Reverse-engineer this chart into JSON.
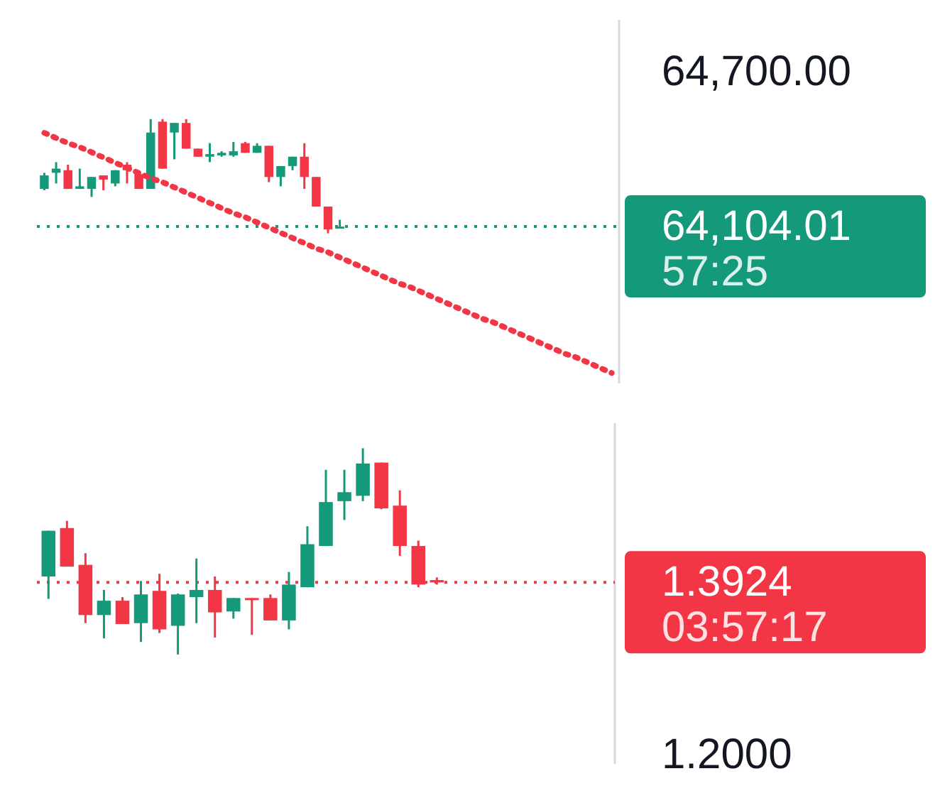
{
  "chart_data": [
    {
      "type": "candlestick",
      "categories": [
        null,
        null,
        null,
        null,
        null,
        null,
        null,
        null,
        null,
        null,
        null,
        null,
        null,
        null,
        null,
        null,
        null,
        null,
        null,
        null,
        null,
        null,
        null,
        null,
        null,
        null,
        null,
        null,
        null,
        null,
        null,
        null,
        null,
        null,
        null,
        null,
        null,
        null,
        null,
        null,
        null,
        null,
        null,
        null,
        null,
        null,
        null,
        null,
        null
      ],
      "ylim": [
        63500,
        64900
      ],
      "yticks": [
        {
          "value": 64700,
          "label": "64,700.00"
        },
        {
          "value": 64104.01,
          "label": "64,104.01"
        }
      ],
      "tick_labels": "y",
      "line_style": "dotted",
      "ohlc": [
        [
          64249,
          64311,
          64244,
          64301
        ],
        [
          64311,
          64352,
          64270,
          64327
        ],
        [
          64321,
          64342,
          64249,
          64249
        ],
        [
          64249,
          64327,
          64249,
          64259
        ],
        [
          64249,
          64295,
          64218,
          64295
        ],
        [
          64301,
          64301,
          64244,
          64285
        ],
        [
          64270,
          64321,
          64259,
          64321
        ],
        [
          64342,
          64352,
          64270,
          64321
        ],
        [
          64306,
          64311,
          64249,
          64249
        ],
        [
          64249,
          64518,
          64249,
          64466
        ],
        [
          64508,
          64518,
          64327,
          64327
        ],
        [
          64466,
          64503,
          64363,
          64503
        ],
        [
          64503,
          64518,
          64404,
          64404
        ],
        [
          64404,
          64404,
          64373,
          64373
        ],
        [
          64373,
          64425,
          64352,
          64383
        ],
        [
          64378,
          64394,
          64373,
          64388
        ],
        [
          64378,
          64430,
          64373,
          64394
        ],
        [
          64425,
          64430,
          64388,
          64388
        ],
        [
          64388,
          64425,
          64388,
          64415
        ],
        [
          64415,
          64415,
          64275,
          64295
        ],
        [
          64295,
          64337,
          64259,
          64337
        ],
        [
          64337,
          64373,
          64321,
          64373
        ],
        [
          64373,
          64425,
          64249,
          64295
        ],
        [
          64295,
          64295,
          64181,
          64181
        ],
        [
          64181,
          64181,
          64078,
          64093
        ],
        [
          64098,
          64130,
          64098,
          64104.01
        ],
        null,
        null,
        null,
        null,
        null,
        null,
        null,
        null,
        null,
        null,
        null,
        null,
        null,
        null,
        null,
        null,
        null,
        null,
        null,
        null,
        null,
        null,
        null
      ],
      "series": [
        {
          "type": "line",
          "color": "#f23645",
          "values": [
            64465,
            64445,
            64425,
            64410,
            64390,
            64370,
            64350,
            64330,
            64310,
            64290,
            64275,
            64255,
            64235,
            64215,
            64195,
            64175,
            64155,
            64140,
            64120,
            64100,
            64080,
            64060,
            64040,
            64020,
            64005,
            63985,
            63965,
            63945,
            63925,
            63905,
            63885,
            63870,
            63850,
            63830,
            63810,
            63790,
            63770,
            63750,
            63735,
            63715,
            63695,
            63675,
            63655,
            63635,
            63615,
            63600,
            63580,
            63560,
            63540
          ]
        }
      ],
      "ref_lines": [
        {
          "axis": "y",
          "value": 64104.01,
          "color": "#149a7a"
        }
      ],
      "annotations": [
        "57:25"
      ]
    },
    {
      "type": "candlestick",
      "categories": [
        null,
        null,
        null,
        null,
        null,
        null,
        null,
        null,
        null,
        null,
        null,
        null,
        null,
        null,
        null,
        null,
        null,
        null,
        null,
        null,
        null,
        null,
        null,
        null,
        null,
        null,
        null,
        null,
        null,
        null,
        null
      ],
      "ylim": [
        1.19,
        1.57
      ],
      "yticks": [
        {
          "value": 1.3924,
          "label": "1.3924"
        },
        {
          "value": 1.2,
          "label": "1.2000"
        }
      ],
      "tick_labels": "y",
      "ohlc": [
        [
          1.399,
          1.45,
          1.374,
          1.45
        ],
        [
          1.453,
          1.461,
          1.41,
          1.41
        ],
        [
          1.412,
          1.425,
          1.347,
          1.356
        ],
        [
          1.356,
          1.384,
          1.33,
          1.372
        ],
        [
          1.372,
          1.376,
          1.346,
          1.346
        ],
        [
          1.347,
          1.394,
          1.326,
          1.379
        ],
        [
          1.383,
          1.402,
          1.336,
          1.34
        ],
        [
          1.344,
          1.38,
          1.312,
          1.379
        ],
        [
          1.376,
          1.419,
          1.347,
          1.384
        ],
        [
          1.384,
          1.399,
          1.331,
          1.359
        ],
        [
          1.36,
          1.375,
          1.352,
          1.375
        ],
        [
          1.375,
          1.375,
          1.334,
          1.374
        ],
        [
          1.375,
          1.379,
          1.35,
          1.35
        ],
        [
          1.35,
          1.404,
          1.34,
          1.39
        ],
        [
          1.387,
          1.455,
          1.387,
          1.435
        ],
        [
          1.433,
          1.518,
          1.433,
          1.482
        ],
        [
          1.483,
          1.518,
          1.462,
          1.493
        ],
        [
          1.489,
          1.542,
          1.483,
          1.525
        ],
        [
          1.526,
          1.526,
          1.474,
          1.475
        ],
        [
          1.478,
          1.495,
          1.422,
          1.433
        ],
        [
          1.433,
          1.439,
          1.387,
          1.39
        ],
        [
          1.395,
          1.398,
          1.39,
          1.3924
        ],
        null,
        null,
        null,
        null,
        null,
        null,
        null,
        null,
        null
      ],
      "ref_lines": [
        {
          "axis": "y",
          "value": 1.3924,
          "color": "#f23645"
        }
      ],
      "annotations": [
        "03:57:17"
      ]
    }
  ]
}
